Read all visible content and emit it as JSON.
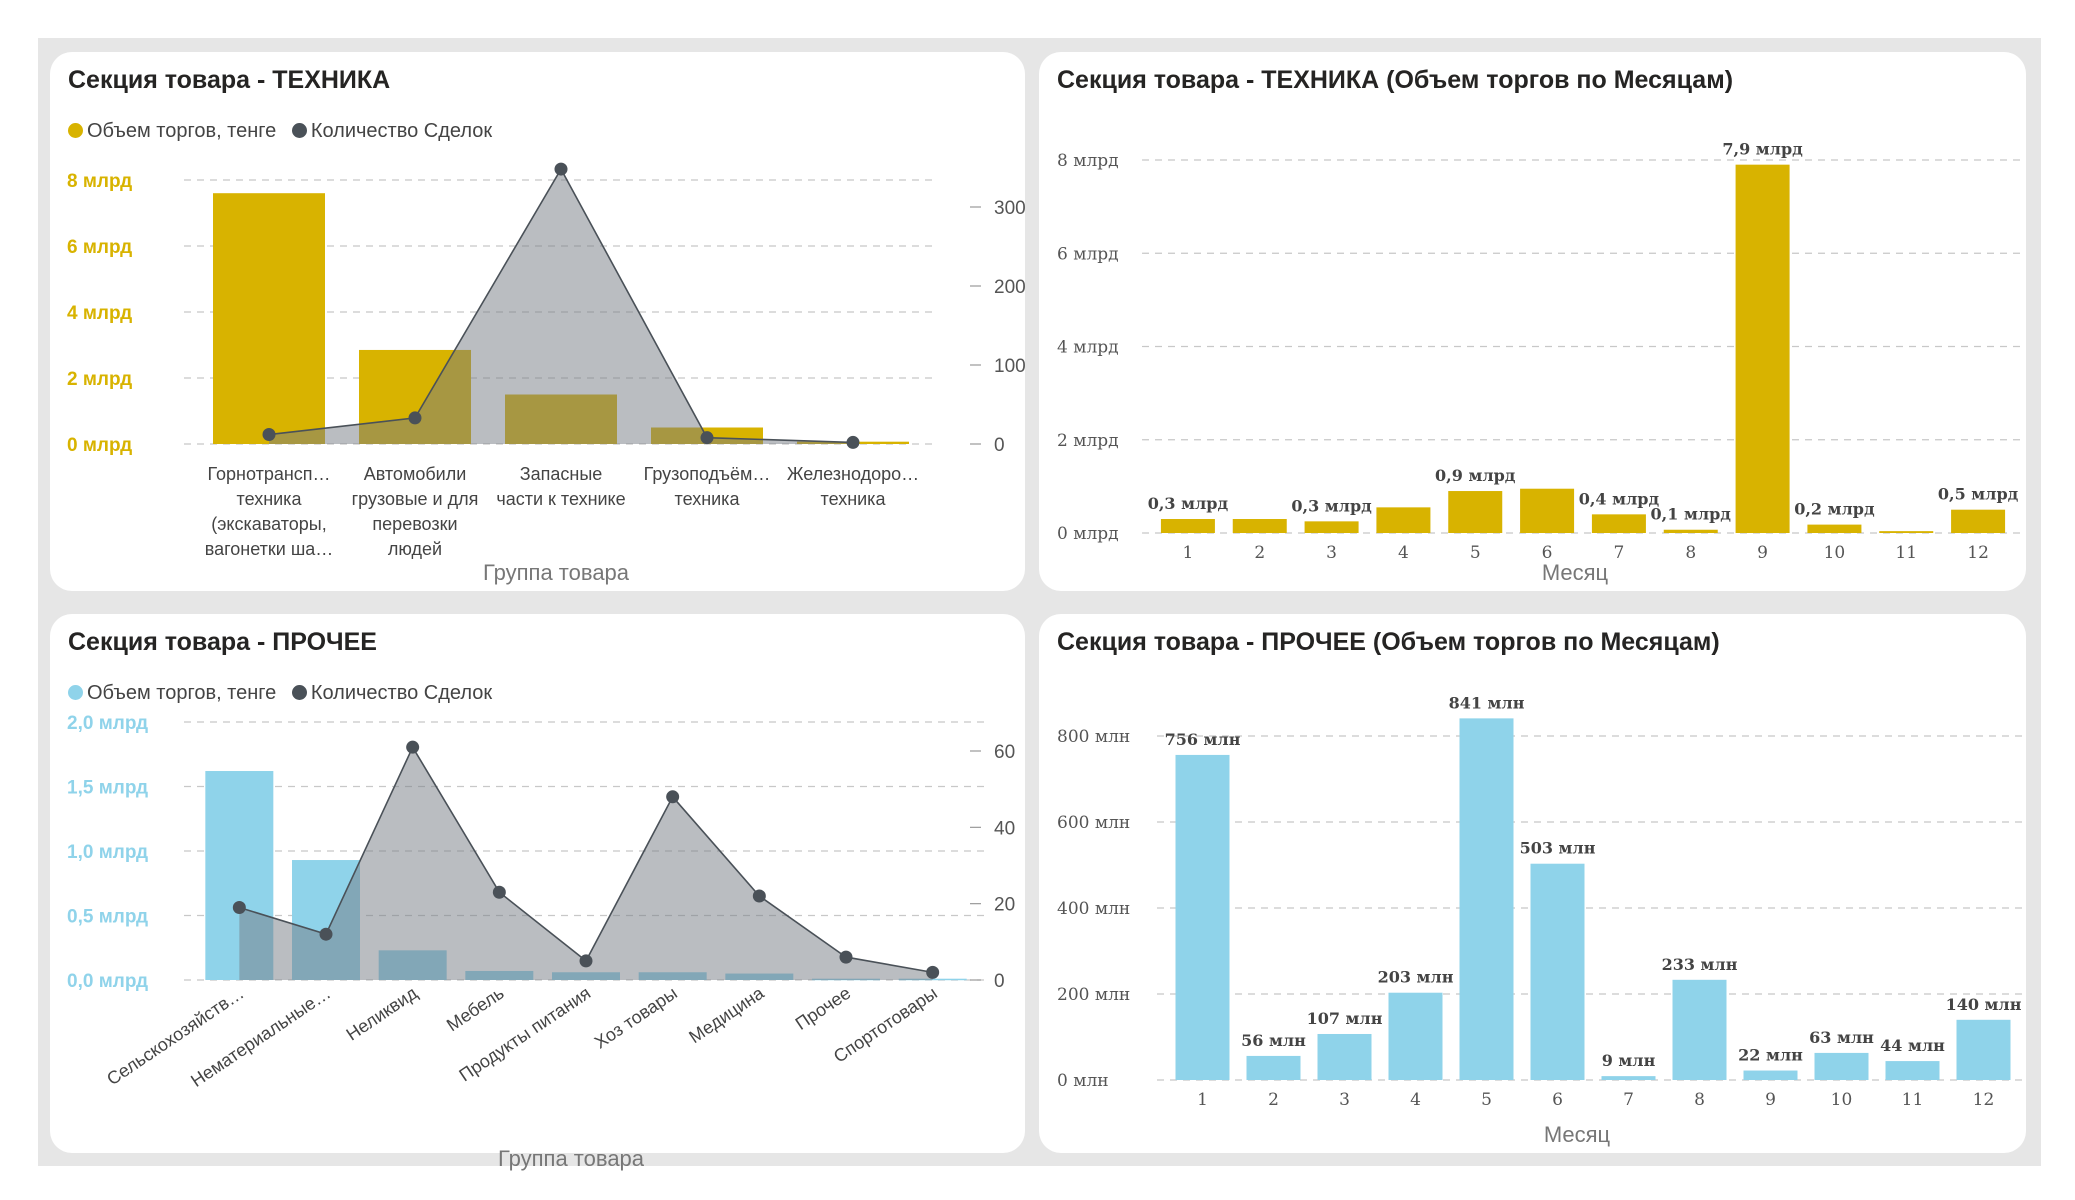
{
  "panels": [
    {
      "id": "tech-group",
      "title": "Секция товара - ТЕХНИКА",
      "legend": [
        {
          "label": "Объем торгов, тенге",
          "color": "#d8b300"
        },
        {
          "label": "Количество Сделок",
          "color": "#4a5158"
        }
      ]
    },
    {
      "id": "tech-month",
      "title": "Секция товара - ТЕХНИКА (Объем торгов по Месяцам)"
    },
    {
      "id": "other-group",
      "title": "Секция товара - ПРОЧЕЕ",
      "legend": [
        {
          "label": "Объем торгов, тенге",
          "color": "#8fd3ea"
        },
        {
          "label": "Количество Сделок",
          "color": "#4a5158"
        }
      ]
    },
    {
      "id": "other-month",
      "title": "Секция товара - ПРОЧЕЕ (Объем торгов по Месяцам)"
    }
  ],
  "chart_data": [
    {
      "type": "bar",
      "title": "Секция товара - ТЕХНИКА",
      "xlabel": "Группа товара",
      "categories": [
        "Горнотрансп… техника (экскаваторы, вагонетки ша…",
        "Автомобили грузовые и для перевозки людей",
        "Запасные части к технике",
        "Грузоподъём… техника",
        "Железнодоро… техника"
      ],
      "category_lines": [
        [
          "Горнотрансп…",
          "техника",
          "(экскаваторы,",
          "вагонетки ша…"
        ],
        [
          "Автомобили",
          "грузовые и для",
          "перевозки",
          "людей"
        ],
        [
          "Запасные",
          "части к технике"
        ],
        [
          "Грузоподъём…",
          "техника"
        ],
        [
          "Железнодоро…",
          "техника"
        ]
      ],
      "series": [
        {
          "name": "Объем торгов, тенге",
          "type": "bar",
          "axis": "left",
          "color": "#d8b300",
          "values": [
            7.6,
            2.85,
            1.5,
            0.5,
            0.07
          ]
        },
        {
          "name": "Количество Сделок",
          "type": "line",
          "axis": "right",
          "color": "#4a5158",
          "values": [
            12,
            33,
            348,
            8,
            2
          ]
        }
      ],
      "y_left": {
        "min": 0,
        "max": 8,
        "ticks": [
          0,
          2,
          4,
          6,
          8
        ],
        "tick_labels": [
          "0 млрд",
          "2 млрд",
          "4 млрд",
          "6 млрд",
          "8 млрд"
        ]
      },
      "y_right": {
        "min": 0,
        "max": 300,
        "ticks": [
          0,
          100,
          200,
          300
        ],
        "tick_labels": [
          "0",
          "100",
          "200",
          "300"
        ]
      },
      "grid": true,
      "legend": "top-left"
    },
    {
      "type": "bar",
      "title": "Секция товара - ТЕХНИКА (Объем торгов по Месяцам)",
      "xlabel": "Месяц",
      "categories": [
        "1",
        "2",
        "3",
        "4",
        "5",
        "6",
        "7",
        "8",
        "9",
        "10",
        "11",
        "12"
      ],
      "series": [
        {
          "color": "#d8b300",
          "values": [
            0.3,
            0.3,
            0.25,
            0.55,
            0.9,
            0.95,
            0.4,
            0.07,
            7.9,
            0.18,
            0.04,
            0.5
          ],
          "labels": [
            "0,3 млрд",
            "",
            "0,3 млрд",
            "",
            "0,9 млрд",
            "",
            "0,4 млрд",
            "0,1 млрд",
            "7,9 млрд",
            "0,2 млрд",
            "",
            "0,5 млрд"
          ]
        }
      ],
      "ylim": [
        0,
        8
      ],
      "yticks": [
        0,
        2,
        4,
        6,
        8
      ],
      "ytick_labels": [
        "0 млрд",
        "2 млрд",
        "4 млрд",
        "6 млрд",
        "8 млрд"
      ],
      "grid": true
    },
    {
      "type": "bar",
      "title": "Секция товара - ПРОЧЕЕ",
      "xlabel": "Группа товара",
      "categories": [
        "Сельскохозяйств…",
        "Нематериальные…",
        "Неликвид",
        "Мебель",
        "Продукты питания",
        "Хоз товары",
        "Медицина",
        "Прочее",
        "Спортотовары"
      ],
      "series": [
        {
          "name": "Объем торгов, тенге",
          "type": "bar",
          "axis": "left",
          "color": "#8fd3ea",
          "values": [
            1.62,
            0.93,
            0.23,
            0.07,
            0.06,
            0.06,
            0.05,
            0.01,
            0.01
          ]
        },
        {
          "name": "Количество Сделок",
          "type": "line",
          "axis": "right",
          "color": "#4a5158",
          "values": [
            19,
            12,
            61,
            23,
            5,
            48,
            22,
            6,
            2
          ]
        }
      ],
      "y_left": {
        "min": 0,
        "max": 2.0,
        "ticks": [
          0,
          0.5,
          1.0,
          1.5,
          2.0
        ],
        "tick_labels": [
          "0,0 млрд",
          "0,5 млрд",
          "1,0 млрд",
          "1,5 млрд",
          "2,0 млрд"
        ]
      },
      "y_right": {
        "min": 0,
        "max": 60,
        "ticks": [
          0,
          20,
          40,
          60
        ],
        "tick_labels": [
          "0",
          "20",
          "40",
          "60"
        ]
      },
      "grid": true,
      "legend": "top-left"
    },
    {
      "type": "bar",
      "title": "Секция товара - ПРОЧЕЕ (Объем торгов по Месяцам)",
      "xlabel": "Месяц",
      "categories": [
        "1",
        "2",
        "3",
        "4",
        "5",
        "6",
        "7",
        "8",
        "9",
        "10",
        "11",
        "12"
      ],
      "series": [
        {
          "color": "#8fd3ea",
          "values": [
            756,
            56,
            107,
            203,
            841,
            503,
            9,
            233,
            22,
            63,
            44,
            140
          ],
          "labels": [
            "756 млн",
            "56 млн",
            "107 млн",
            "203 млн",
            "841 млн",
            "503 млн",
            "9 млн",
            "233 млн",
            "22 млн",
            "63 млн",
            "44 млн",
            "140 млн"
          ]
        }
      ],
      "ylim": [
        0,
        800
      ],
      "yticks": [
        0,
        200,
        400,
        600,
        800
      ],
      "ytick_labels": [
        "0 млн",
        "200 млн",
        "400 млн",
        "600 млн",
        "800 млн"
      ],
      "grid": true
    }
  ]
}
